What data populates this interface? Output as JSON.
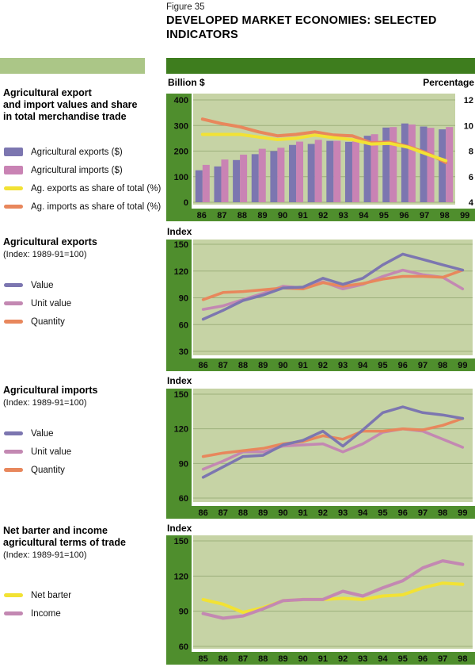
{
  "figure": {
    "label": "Figure 35",
    "title_line1": "DEVELOPED MARKET ECONOMIES: SELECTED",
    "title_line2": "INDICATORS"
  },
  "colors": {
    "dark_green": "#3e7d1e",
    "axis_green": "#4f8e2d",
    "plot_bg": "#c6d3a5",
    "gridline": "#9db07c",
    "sidebar_bar": "#abc687",
    "purple": "#7c76b0",
    "pink": "#c983b4",
    "mauve": "#c388b2",
    "yellow": "#f2e234",
    "orange": "#e8875c"
  },
  "panels": [
    {
      "title_lines": [
        "Agricultural export",
        "and import values and share",
        "in total merchandise trade"
      ],
      "legend": [
        {
          "label": "Agricultural exports ($)",
          "color": "#7c76b0",
          "swatch": "box"
        },
        {
          "label": "Agricultural imports ($)",
          "color": "#c983b4",
          "swatch": "box"
        },
        {
          "label": "Ag. exports as share of total (%)",
          "color": "#f2e234",
          "swatch": "line"
        },
        {
          "label": "Ag. imports as share of total (%)",
          "color": "#e8875c",
          "swatch": "line"
        }
      ]
    },
    {
      "title_lines": [
        "Agricultural exports"
      ],
      "subtitle": "(Index: 1989-91=100)",
      "legend": [
        {
          "label": "Value",
          "color": "#7c76b0",
          "swatch": "line"
        },
        {
          "label": "Unit value",
          "color": "#c388b2",
          "swatch": "line"
        },
        {
          "label": "Quantity",
          "color": "#e8875c",
          "swatch": "line"
        }
      ]
    },
    {
      "title_lines": [
        "Agricultural imports"
      ],
      "subtitle": "(Index: 1989-91=100)",
      "legend": [
        {
          "label": "Value",
          "color": "#7c76b0",
          "swatch": "line"
        },
        {
          "label": "Unit value",
          "color": "#c388b2",
          "swatch": "line"
        },
        {
          "label": "Quantity",
          "color": "#e8875c",
          "swatch": "line"
        }
      ]
    },
    {
      "title_lines": [
        "Net barter and income",
        "agricultural terms of trade"
      ],
      "subtitle": "(Index: 1989-91=100)",
      "legend": [
        {
          "label": "Net barter",
          "color": "#f2e234",
          "swatch": "line"
        },
        {
          "label": "Income",
          "color": "#c388b2",
          "swatch": "line"
        }
      ]
    }
  ],
  "chart_data": [
    {
      "type": "bar",
      "title": "Agricultural export and import values and share in total merchandise trade",
      "legend_position": "left",
      "categories": [
        "86",
        "87",
        "88",
        "89",
        "90",
        "91",
        "92",
        "93",
        "94",
        "95",
        "96",
        "97",
        "98",
        "99"
      ],
      "left_axis": {
        "label": "Billion $",
        "min": 0,
        "max": 400,
        "ticks": [
          400,
          300,
          200,
          100,
          0
        ]
      },
      "right_axis": {
        "label": "Percentage",
        "min": 4,
        "max": 12,
        "ticks": [
          12,
          10,
          8,
          6,
          4
        ]
      },
      "bar_series": [
        {
          "name": "Agricultural exports ($)",
          "axis": "left",
          "color": "#7c76b0",
          "values": [
            125,
            140,
            165,
            188,
            200,
            224,
            228,
            240,
            236,
            260,
            292,
            308,
            296,
            285
          ]
        },
        {
          "name": "Agricultural imports ($)",
          "axis": "left",
          "color": "#c983b4",
          "values": [
            146,
            167,
            186,
            209,
            213,
            237,
            244,
            240,
            240,
            266,
            294,
            304,
            291,
            294
          ]
        }
      ],
      "line_series": [
        {
          "name": "Ag. imports as share of total (%)",
          "axis": "right",
          "color": "#e8875c",
          "values": [
            10.5,
            10.15,
            9.9,
            9.5,
            9.2,
            9.3,
            9.5,
            9.25,
            9.2,
            8.65,
            8.7,
            8.35,
            7.85,
            7.1
          ]
        },
        {
          "name": "Ag. exports as share of total (%)",
          "axis": "right",
          "color": "#f2e234",
          "values": [
            9.3,
            9.3,
            9.3,
            9.1,
            8.9,
            9.0,
            9.25,
            9.05,
            8.9,
            8.55,
            8.6,
            8.3,
            7.75,
            7.25
          ]
        }
      ]
    },
    {
      "type": "line",
      "title": "Agricultural exports (Index: 1989-91=100)",
      "legend_position": "left",
      "categories": [
        "86",
        "87",
        "88",
        "89",
        "90",
        "91",
        "92",
        "93",
        "94",
        "95",
        "96",
        "97",
        "98",
        "99"
      ],
      "left_axis": {
        "label": "Index",
        "min": 30,
        "max": 150,
        "ticks": [
          150,
          120,
          90,
          60,
          30
        ]
      },
      "line_series": [
        {
          "name": "Unit value",
          "color": "#c388b2",
          "values": [
            77,
            81,
            88,
            95,
            103,
            101,
            108,
            100,
            105,
            114,
            121,
            116,
            113,
            100
          ]
        },
        {
          "name": "Quantity",
          "color": "#e8875c",
          "values": [
            88,
            96,
            97,
            99,
            101,
            100,
            107,
            103,
            106,
            111,
            114,
            114,
            113,
            121
          ]
        },
        {
          "name": "Value",
          "color": "#7c76b0",
          "values": [
            66,
            76,
            87,
            93,
            101,
            102,
            112,
            105,
            112,
            127,
            139,
            133,
            127,
            121
          ]
        }
      ]
    },
    {
      "type": "line",
      "title": "Agricultural imports (Index: 1989-91=100)",
      "legend_position": "left",
      "categories": [
        "86",
        "87",
        "88",
        "89",
        "90",
        "91",
        "92",
        "93",
        "94",
        "95",
        "96",
        "97",
        "98",
        "99"
      ],
      "left_axis": {
        "label": "Index",
        "min": 60,
        "max": 150,
        "ticks": [
          150,
          120,
          90,
          60
        ]
      },
      "line_series": [
        {
          "name": "Unit value",
          "color": "#c388b2",
          "values": [
            85,
            92,
            100,
            100,
            105,
            106,
            107,
            100,
            107,
            117,
            120,
            118,
            111,
            104
          ]
        },
        {
          "name": "Quantity",
          "color": "#e8875c",
          "values": [
            96,
            99,
            101,
            103,
            107,
            109,
            114,
            111,
            118,
            118,
            120,
            119,
            123,
            129
          ]
        },
        {
          "name": "Value",
          "color": "#7c76b0",
          "values": [
            78,
            87,
            96,
            97,
            106,
            110,
            118,
            105,
            119,
            134,
            139,
            134,
            132,
            129
          ]
        }
      ]
    },
    {
      "type": "line",
      "title": "Net barter and income agricultural terms of trade (Index: 1989-91=100)",
      "legend_position": "left",
      "categories": [
        "85",
        "86",
        "87",
        "88",
        "89",
        "90",
        "91",
        "92",
        "93",
        "94",
        "95",
        "96",
        "97",
        "98"
      ],
      "left_axis": {
        "label": "Index",
        "min": 60,
        "max": 150,
        "ticks": [
          150,
          120,
          90,
          60
        ]
      },
      "line_series": [
        {
          "name": "Net barter",
          "color": "#f2e234",
          "values": [
            100,
            96,
            89,
            93,
            99,
            100,
            100,
            101,
            100,
            103,
            104,
            110,
            114,
            113
          ]
        },
        {
          "name": "Income",
          "color": "#c388b2",
          "values": [
            88,
            84,
            86,
            92,
            99,
            100,
            100,
            107,
            103,
            110,
            116,
            127,
            133,
            130
          ]
        }
      ]
    }
  ]
}
